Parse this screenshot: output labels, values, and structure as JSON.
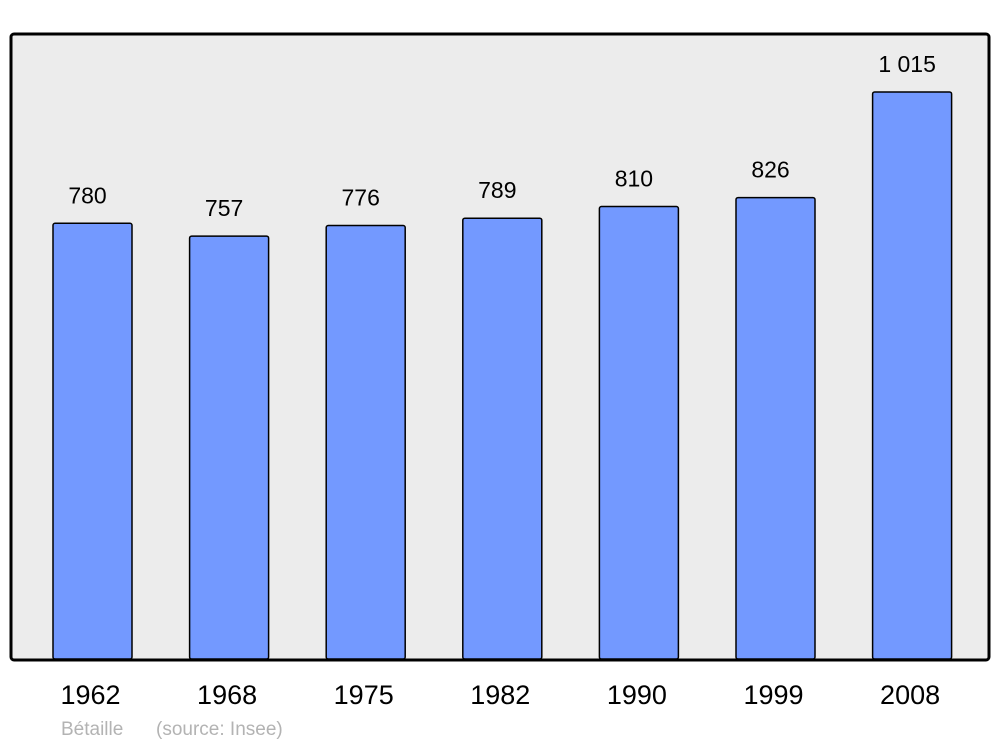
{
  "chart_data": {
    "type": "bar",
    "categories": [
      "1962",
      "1968",
      "1975",
      "1982",
      "1990",
      "1999",
      "2008"
    ],
    "values": [
      780,
      757,
      776,
      789,
      810,
      826,
      1015
    ],
    "value_labels": [
      "780",
      "757",
      "776",
      "789",
      "810",
      "826",
      "1 015"
    ],
    "title": "",
    "xlabel": "",
    "ylabel": "",
    "ylim": [
      0,
      1015
    ],
    "grid": false,
    "colors": {
      "bar": "#7399ff",
      "background": "#ececec",
      "border": "#000000"
    }
  },
  "credits": {
    "author": "Bétaille",
    "source": "(source: Insee)"
  }
}
